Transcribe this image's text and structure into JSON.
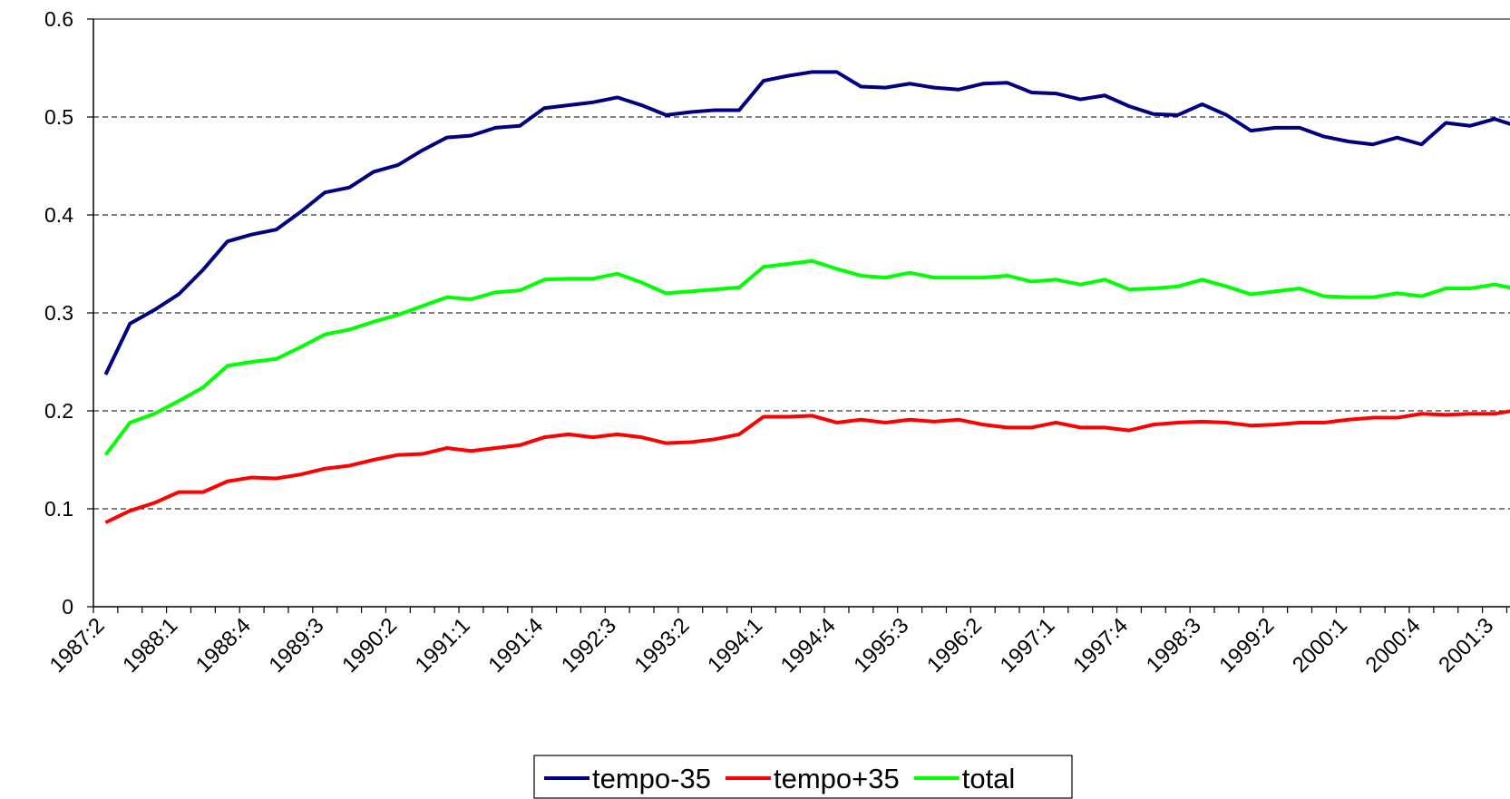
{
  "chart_data": {
    "type": "line",
    "categories": [
      "1987:2",
      null,
      null,
      "1988:1",
      null,
      null,
      "1988:4",
      null,
      null,
      "1989:3",
      null,
      null,
      "1990:2",
      null,
      null,
      "1991:1",
      null,
      null,
      "1991:4",
      null,
      null,
      "1992:3",
      null,
      null,
      "1993:2",
      null,
      null,
      "1994:1",
      null,
      null,
      "1994:4",
      null,
      null,
      "1995:3",
      null,
      null,
      "1996:2",
      null,
      null,
      "1997:1",
      null,
      null,
      "1997:4",
      null,
      null,
      "1998:3",
      null,
      null,
      "1999:2",
      null,
      null,
      "2000:1",
      null,
      null,
      "2000:4",
      null,
      null,
      "2001:3",
      null
    ],
    "series": [
      {
        "name": "tempo-35",
        "color": "#000080",
        "values": [
          0.237,
          0.289,
          0.303,
          0.319,
          0.344,
          0.373,
          0.38,
          0.385,
          0.403,
          0.423,
          0.428,
          0.444,
          0.451,
          0.466,
          0.479,
          0.481,
          0.489,
          0.491,
          0.509,
          0.512,
          0.515,
          0.52,
          0.512,
          0.502,
          0.505,
          0.507,
          0.507,
          0.537,
          0.542,
          0.546,
          0.546,
          0.531,
          0.53,
          0.534,
          0.53,
          0.528,
          0.534,
          0.535,
          0.525,
          0.524,
          0.518,
          0.522,
          0.511,
          0.503,
          0.502,
          0.513,
          0.502,
          0.486,
          0.489,
          0.489,
          0.48,
          0.475,
          0.472,
          0.479,
          0.472,
          0.494,
          0.491,
          0.498,
          0.49
        ]
      },
      {
        "name": "tempo+35",
        "color": "#ff0000",
        "values": [
          0.086,
          0.098,
          0.106,
          0.117,
          0.117,
          0.128,
          0.132,
          0.131,
          0.135,
          0.141,
          0.144,
          0.15,
          0.155,
          0.156,
          0.162,
          0.159,
          0.162,
          0.165,
          0.173,
          0.176,
          0.173,
          0.176,
          0.173,
          0.167,
          0.168,
          0.171,
          0.176,
          0.194,
          0.194,
          0.195,
          0.188,
          0.191,
          0.188,
          0.191,
          0.189,
          0.191,
          0.186,
          0.183,
          0.183,
          0.188,
          0.183,
          0.183,
          0.18,
          0.186,
          0.188,
          0.189,
          0.188,
          0.185,
          0.186,
          0.188,
          0.188,
          0.191,
          0.193,
          0.193,
          0.197,
          0.196,
          0.197,
          0.197,
          0.201
        ]
      },
      {
        "name": "total",
        "color": "#00ff00",
        "values": [
          0.155,
          0.188,
          0.197,
          0.21,
          0.224,
          0.246,
          0.25,
          0.253,
          0.265,
          0.278,
          0.283,
          0.291,
          0.298,
          0.307,
          0.316,
          0.314,
          0.321,
          0.323,
          0.334,
          0.335,
          0.335,
          0.34,
          0.331,
          0.32,
          0.322,
          0.324,
          0.326,
          0.347,
          0.35,
          0.353,
          0.345,
          0.338,
          0.336,
          0.341,
          0.336,
          0.336,
          0.336,
          0.338,
          0.332,
          0.334,
          0.329,
          0.334,
          0.324,
          0.325,
          0.327,
          0.334,
          0.327,
          0.319,
          0.322,
          0.325,
          0.317,
          0.316,
          0.316,
          0.32,
          0.317,
          0.325,
          0.325,
          0.329,
          0.324
        ]
      }
    ],
    "ylim": [
      0,
      0.6
    ],
    "yticks": [
      0,
      0.1,
      0.2,
      0.3,
      0.4,
      0.5,
      0.6
    ],
    "grid": true,
    "legend": "bottom"
  }
}
